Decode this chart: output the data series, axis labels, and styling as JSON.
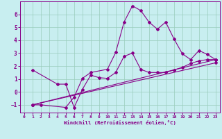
{
  "xlabel": "Windchill (Refroidissement éolien,°C)",
  "bg_color": "#c8eef0",
  "line_color": "#880088",
  "grid_color": "#99ccbb",
  "spine_color": "#880088",
  "xlim": [
    -0.5,
    23.5
  ],
  "ylim": [
    -1.6,
    7.0
  ],
  "yticks": [
    -1,
    0,
    1,
    2,
    3,
    4,
    5,
    6
  ],
  "xticks": [
    0,
    1,
    2,
    3,
    4,
    5,
    6,
    7,
    8,
    9,
    10,
    11,
    12,
    13,
    14,
    15,
    16,
    17,
    18,
    19,
    20,
    21,
    22,
    23
  ],
  "lines": [
    {
      "x": [
        1,
        2,
        5,
        6,
        7,
        8,
        10,
        11,
        12,
        13,
        14,
        15,
        16,
        17,
        18,
        19,
        20,
        21,
        22,
        23
      ],
      "y": [
        -1.0,
        -1.0,
        -1.2,
        -0.4,
        1.05,
        1.5,
        1.75,
        3.05,
        5.4,
        6.65,
        6.3,
        5.4,
        4.85,
        5.4,
        4.1,
        2.95,
        2.5,
        3.2,
        2.9,
        2.5
      ]
    },
    {
      "x": [
        1,
        4,
        5,
        6,
        7,
        8,
        9,
        10,
        11,
        12,
        13,
        14,
        15,
        16,
        17,
        18,
        19,
        20,
        21,
        22,
        23
      ],
      "y": [
        1.7,
        0.6,
        0.6,
        -1.2,
        0.2,
        1.3,
        1.1,
        1.05,
        1.5,
        2.75,
        3.0,
        1.75,
        1.5,
        1.5,
        1.5,
        1.7,
        1.9,
        2.2,
        2.4,
        2.5,
        2.5
      ]
    },
    {
      "x": [
        1,
        23
      ],
      "y": [
        -1.0,
        2.25
      ]
    },
    {
      "x": [
        1,
        23
      ],
      "y": [
        -1.0,
        2.5
      ]
    }
  ]
}
